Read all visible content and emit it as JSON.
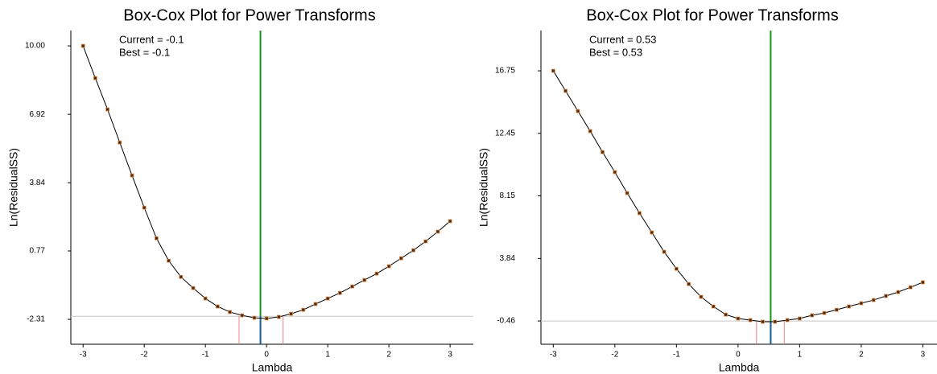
{
  "chart_data": [
    {
      "type": "boxcox",
      "title": "Box-Cox Plot for Power Transforms",
      "xlabel": "Lambda",
      "ylabel": "Ln(ResidualSS)",
      "current_label": "Current = -0.1",
      "best_label": "Best = -0.1",
      "current": -0.1,
      "best": -0.1,
      "ci": [
        -0.45,
        0.27
      ],
      "threshold": -2.17,
      "x": [
        -3.0,
        -2.8,
        -2.6,
        -2.4,
        -2.2,
        -2.0,
        -1.8,
        -1.6,
        -1.4,
        -1.2,
        -1.0,
        -0.8,
        -0.6,
        -0.4,
        -0.2,
        0.0,
        0.2,
        0.4,
        0.6,
        0.8,
        1.0,
        1.2,
        1.4,
        1.6,
        1.8,
        2.0,
        2.2,
        2.4,
        2.6,
        2.8,
        3.0
      ],
      "values": [
        10.0,
        8.55,
        7.14,
        5.65,
        4.17,
        2.72,
        1.34,
        0.33,
        -0.4,
        -0.9,
        -1.37,
        -1.73,
        -1.98,
        -2.13,
        -2.24,
        -2.27,
        -2.2,
        -2.06,
        -1.88,
        -1.62,
        -1.37,
        -1.12,
        -0.83,
        -0.54,
        -0.25,
        0.08,
        0.44,
        0.8,
        1.2,
        1.64,
        2.11
      ],
      "xlim": [
        -3.2,
        3.38
      ],
      "ylim": [
        -3.43,
        10.69
      ],
      "xticks": [
        -3,
        -2,
        -1,
        0,
        1,
        2,
        3
      ],
      "yticks": [
        -2.31,
        0.77,
        3.84,
        6.92,
        {
          "value": 10.0,
          "label": "10.00"
        }
      ]
    },
    {
      "type": "boxcox",
      "title": "Box-Cox Plot for Power Transforms",
      "xlabel": "Lambda",
      "ylabel": "Ln(ResidualSS)",
      "current_label": "Current = 0.53",
      "best_label": "Best = 0.53",
      "current": 0.53,
      "best": 0.53,
      "ci": [
        0.3,
        0.75
      ],
      "threshold": -0.46,
      "x": [
        -3.0,
        -2.8,
        -2.6,
        -2.4,
        -2.2,
        -2.0,
        -1.8,
        -1.6,
        -1.4,
        -1.2,
        -1.0,
        -0.8,
        -0.6,
        -0.4,
        -0.2,
        0.0,
        0.2,
        0.4,
        0.6,
        0.8,
        1.0,
        1.2,
        1.4,
        1.6,
        1.8,
        2.0,
        2.2,
        2.4,
        2.6,
        2.8,
        3.0
      ],
      "values": [
        16.75,
        15.37,
        13.98,
        12.6,
        11.16,
        9.78,
        8.34,
        6.96,
        5.63,
        4.3,
        3.13,
        2.08,
        1.2,
        0.54,
        -0.02,
        -0.29,
        -0.4,
        -0.51,
        -0.51,
        -0.4,
        -0.29,
        -0.07,
        0.09,
        0.31,
        0.54,
        0.76,
        0.98,
        1.26,
        1.53,
        1.86,
        2.2
      ],
      "xlim": [
        -3.2,
        3.23
      ],
      "ylim": [
        -2.06,
        19.52
      ],
      "xticks": [
        -3,
        -2,
        -1,
        0,
        1,
        2,
        3
      ],
      "yticks": [
        -0.46,
        3.84,
        8.15,
        12.45,
        16.75
      ]
    }
  ]
}
